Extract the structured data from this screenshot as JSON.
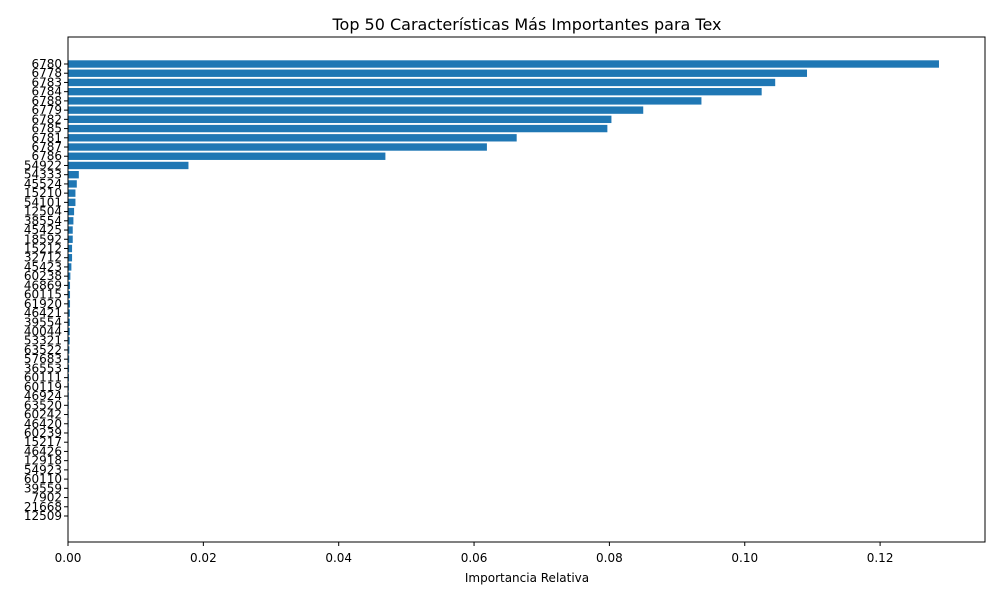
{
  "chart_data": {
    "type": "bar",
    "orientation": "horizontal",
    "title": "Top 50 Características Más Importantes para Tex",
    "xlabel": "Importancia Relativa",
    "ylabel": "",
    "xlim": [
      0,
      0.1355
    ],
    "xticks": [
      0.0,
      0.02,
      0.04,
      0.06,
      0.08,
      0.1,
      0.12
    ],
    "xtick_labels": [
      "0.00",
      "0.02",
      "0.04",
      "0.06",
      "0.08",
      "0.10",
      "0.12"
    ],
    "grid": false,
    "categories": [
      "6780",
      "6778",
      "6783",
      "6784",
      "6788",
      "6779",
      "6782",
      "6785",
      "6781",
      "6787",
      "6786",
      "54922",
      "54333",
      "45524",
      "15210",
      "54101",
      "12504",
      "38554",
      "45425",
      "18592",
      "15212",
      "32712",
      "45423",
      "60238",
      "46869",
      "60115",
      "61920",
      "46421",
      "39554",
      "40044",
      "53321",
      "63522",
      "57683",
      "36553",
      "60111",
      "60119",
      "46924",
      "63520",
      "60242",
      "46420",
      "60239",
      "15217",
      "46426",
      "12918",
      "54923",
      "60110",
      "39559",
      "7902",
      "21668",
      "12509"
    ],
    "values": [
      0.1287,
      0.1092,
      0.1045,
      0.1025,
      0.0936,
      0.085,
      0.0803,
      0.0797,
      0.0663,
      0.0619,
      0.0469,
      0.0178,
      0.0016,
      0.0013,
      0.0011,
      0.0011,
      0.0009,
      0.0008,
      0.0007,
      0.0007,
      0.0006,
      0.0006,
      0.0005,
      0.00035,
      0.0003,
      0.0003,
      0.0003,
      0.00028,
      0.00027,
      0.00026,
      0.00025,
      0.0002,
      0.00018,
      0.00016,
      0.00014,
      0.00013,
      0.00012,
      0.00011,
      0.0001,
      0.0001,
      9e-05,
      8e-05,
      7e-05,
      6e-05,
      5e-05,
      4e-05,
      3e-05,
      2e-05,
      1e-05,
      1e-05
    ],
    "color": "#1f77b4"
  }
}
